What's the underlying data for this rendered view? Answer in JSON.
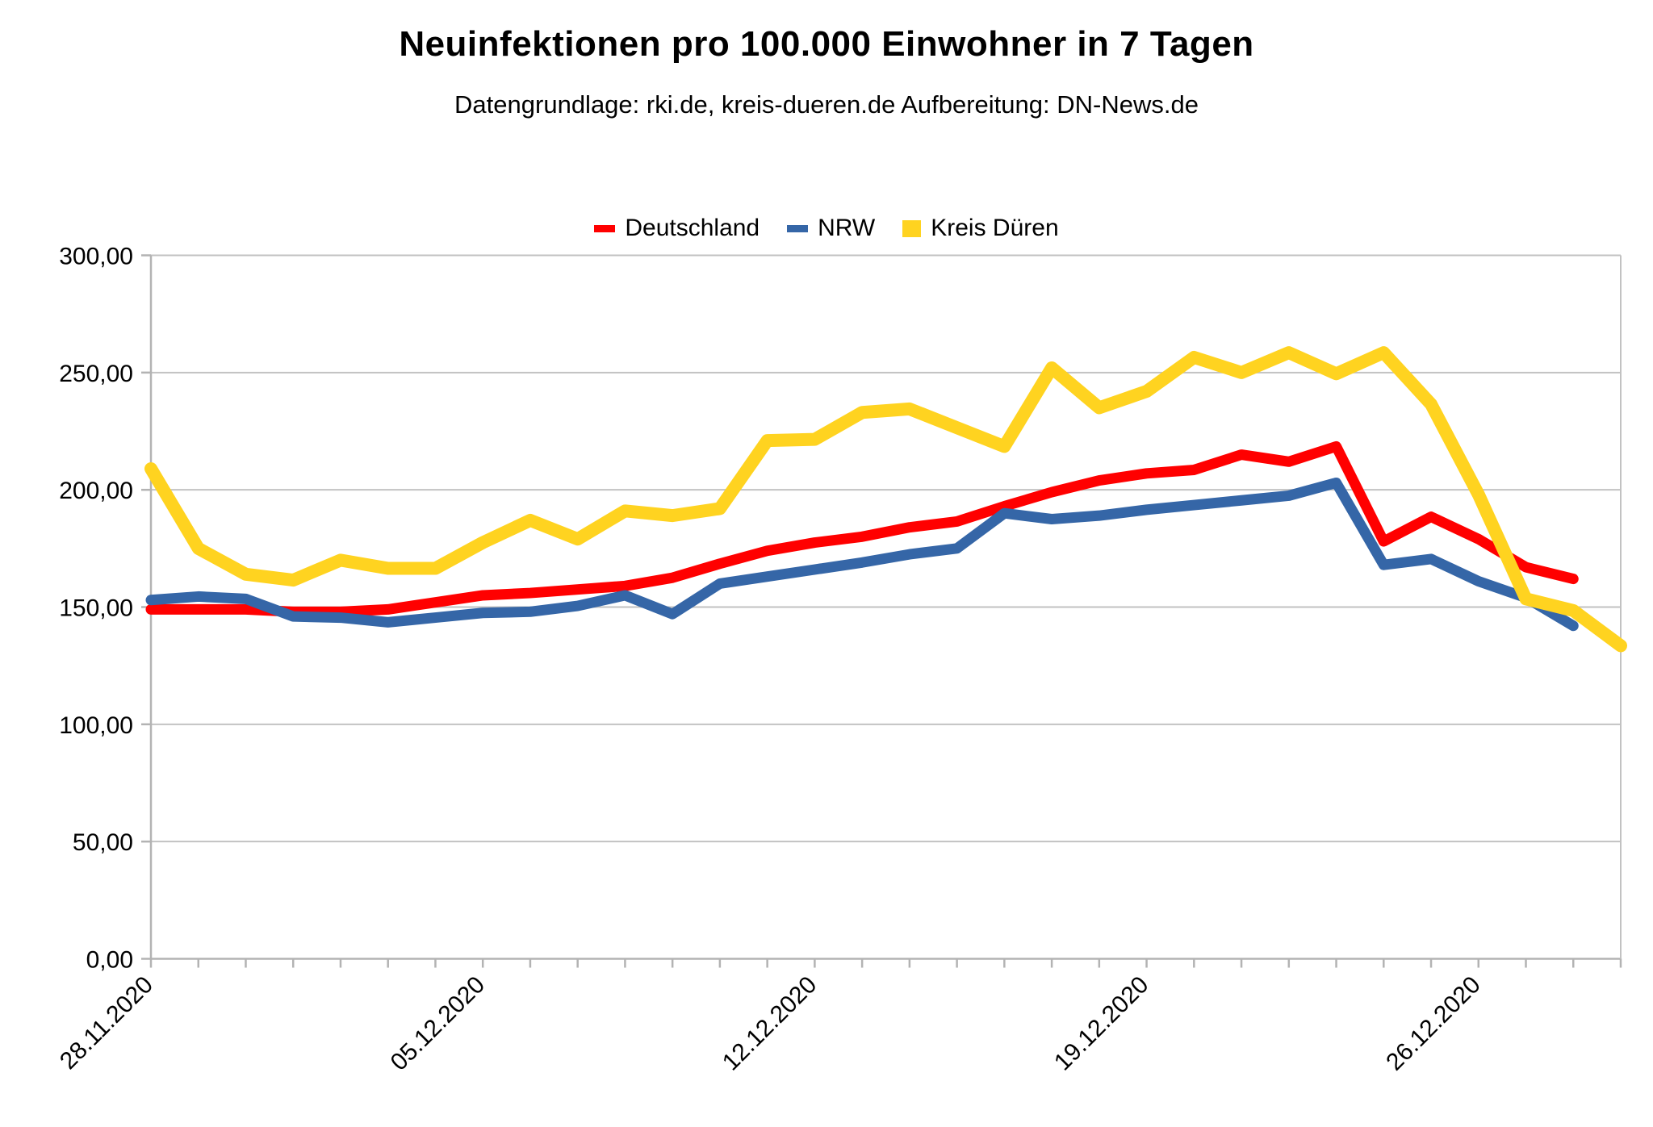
{
  "title": "Neuinfektionen pro 100.000 Einwohner in 7 Tagen",
  "subtitle": "Datengrundlage: rki.de, kreis-dueren.de Aufbereitung: DN-News.de",
  "legend": [
    {
      "label": "Deutschland",
      "color": "#ff0000",
      "marker": "line"
    },
    {
      "label": "NRW",
      "color": "#3566a7",
      "marker": "line"
    },
    {
      "label": "Kreis Düren",
      "color": "#ffd320",
      "marker": "square"
    }
  ],
  "colors": {
    "grid": "#c2c2c2",
    "axis": "#b3b3b3",
    "text": "#000000",
    "background": "#ffffff"
  },
  "chart_data": {
    "type": "line",
    "x": [
      "28.11.2020",
      "29.11.2020",
      "30.11.2020",
      "01.12.2020",
      "02.12.2020",
      "03.12.2020",
      "04.12.2020",
      "05.12.2020",
      "06.12.2020",
      "07.12.2020",
      "08.12.2020",
      "09.12.2020",
      "10.12.2020",
      "11.12.2020",
      "12.12.2020",
      "13.12.2020",
      "14.12.2020",
      "15.12.2020",
      "16.12.2020",
      "17.12.2020",
      "18.12.2020",
      "19.12.2020",
      "20.12.2020",
      "21.12.2020",
      "22.12.2020",
      "23.12.2020",
      "24.12.2020",
      "25.12.2020",
      "26.12.2020",
      "27.12.2020",
      "28.12.2020",
      "29.12.2020"
    ],
    "x_tick_labels": [
      "28.11.2020",
      "05.12.2020",
      "12.12.2020",
      "19.12.2020",
      "26.12.2020"
    ],
    "x_tick_indices": [
      0,
      7,
      14,
      21,
      28
    ],
    "y_tick_values": [
      0,
      50,
      100,
      150,
      200,
      250,
      300
    ],
    "y_tick_labels": [
      "0,00",
      "50,00",
      "100,00",
      "150,00",
      "200,00",
      "250,00",
      "300,00"
    ],
    "ylim": [
      0,
      300
    ],
    "grid": "horizontal",
    "legend_position": "top-center",
    "series": [
      {
        "name": "Deutschland",
        "color": "#ff0000",
        "stroke_width": 13,
        "values": [
          149,
          149,
          149,
          148,
          148,
          149,
          152,
          155,
          156,
          157.5,
          159,
          162.5,
          168.5,
          174,
          177.5,
          180,
          184,
          186.5,
          193,
          199,
          204,
          207,
          208.5,
          215,
          212,
          218.5,
          178,
          188.5,
          179,
          167,
          162,
          null
        ]
      },
      {
        "name": "NRW",
        "color": "#3566a7",
        "stroke_width": 13,
        "values": [
          153,
          154.5,
          153.5,
          146,
          145.5,
          143.5,
          145.5,
          147.5,
          148,
          150.5,
          155,
          147,
          160,
          163,
          166,
          169,
          172.5,
          175,
          190,
          187.5,
          189,
          191.5,
          193.5,
          195.5,
          197.5,
          203,
          168,
          170.5,
          161,
          154,
          142,
          null
        ]
      },
      {
        "name": "Kreis Düren",
        "color": "#ffd320",
        "stroke_width": 16,
        "values": [
          209,
          175,
          164,
          161.5,
          170,
          166.5,
          166.5,
          177.5,
          187,
          179,
          191,
          189,
          192,
          221,
          221.5,
          233,
          234.5,
          226.5,
          218.5,
          252,
          235,
          242,
          256.5,
          250,
          258.5,
          249.5,
          258.5,
          236.5,
          198,
          153.5,
          148.5,
          133.5
        ]
      }
    ]
  }
}
